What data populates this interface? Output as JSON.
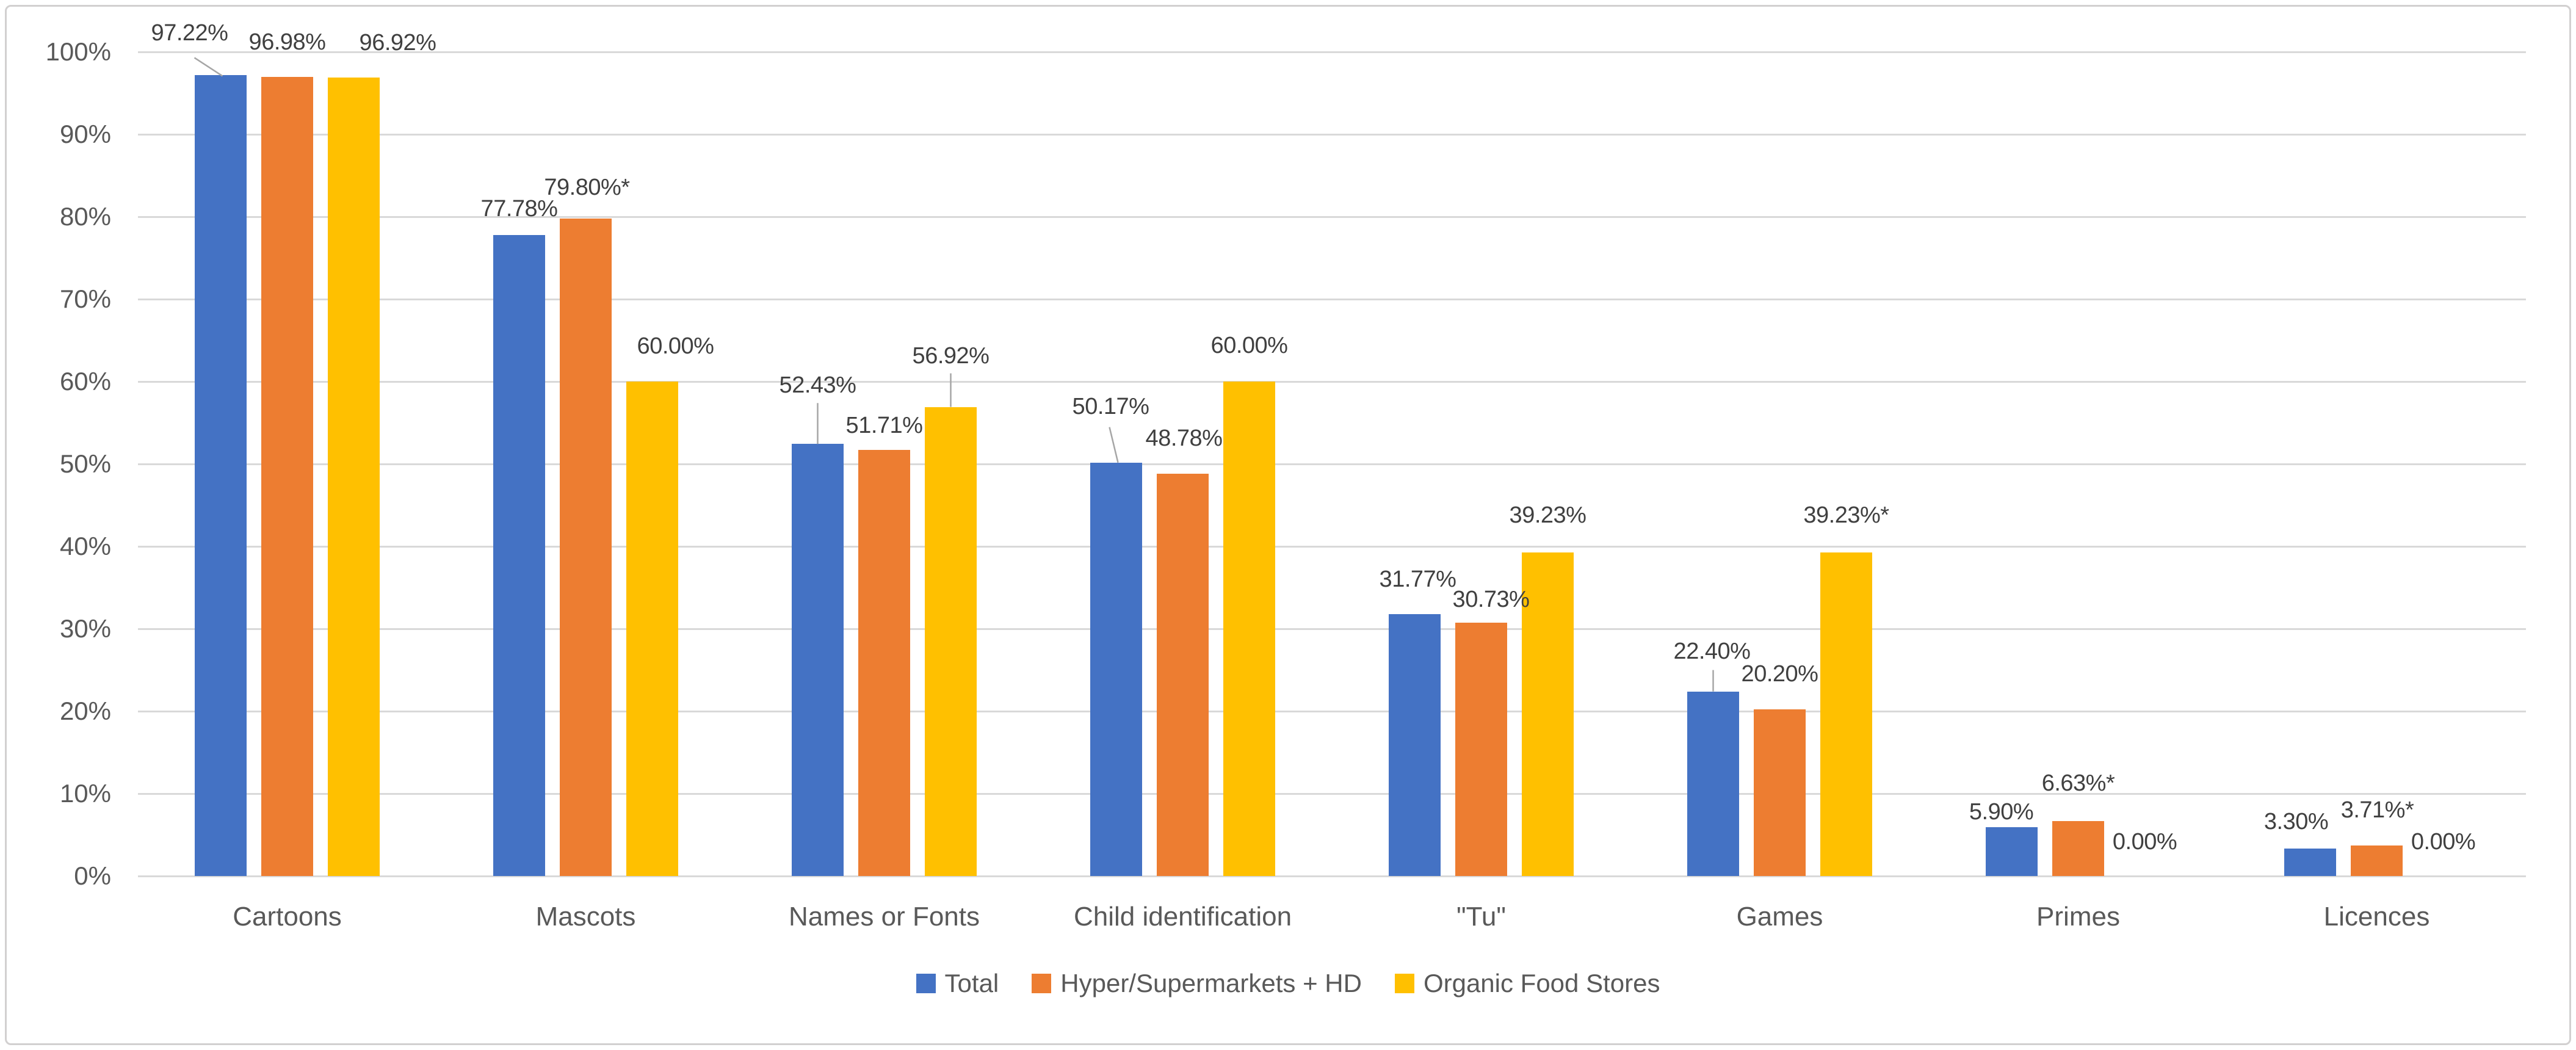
{
  "chart_data": {
    "type": "bar",
    "title": "",
    "xlabel": "",
    "ylabel": "",
    "categories": [
      "Cartoons",
      "Mascots",
      "Names or Fonts",
      "Child identification",
      "\"Tu\"",
      "Games",
      "Primes",
      "Licences"
    ],
    "series": [
      {
        "name": "Total",
        "color": "#4472C4",
        "values": [
          97.22,
          77.78,
          52.43,
          50.17,
          31.77,
          22.4,
          5.9,
          3.3
        ],
        "labels": [
          "97.22%",
          "77.78%",
          "52.43%",
          "50.17%",
          "31.77%",
          "22.40%",
          "5.90%",
          "3.30%"
        ]
      },
      {
        "name": "Hyper/Supermarkets + HD",
        "color": "#ED7D31",
        "values": [
          96.98,
          79.8,
          51.71,
          48.78,
          30.73,
          20.2,
          6.63,
          3.71
        ],
        "labels": [
          "96.98%",
          "79.80%*",
          "51.71%",
          "48.78%",
          "30.73%",
          "20.20%",
          "6.63%*",
          "3.71%*"
        ]
      },
      {
        "name": "Organic Food Stores",
        "color": "#FFC000",
        "values": [
          96.92,
          60.0,
          56.92,
          60.0,
          39.23,
          39.23,
          0.0,
          0.0
        ],
        "labels": [
          "96.92%",
          "60.00%",
          "56.92%",
          "60.00%",
          "39.23%",
          "39.23%*",
          "0.00%",
          "0.00%"
        ]
      }
    ],
    "y_ticks": [
      "0%",
      "10%",
      "20%",
      "30%",
      "40%",
      "50%",
      "60%",
      "70%",
      "80%",
      "90%",
      "100%"
    ],
    "ylim": [
      0,
      100
    ],
    "grid": true,
    "legend_position": "bottom",
    "grid_color": "#D9D9D9",
    "axis_text_color": "#595959",
    "data_label_color": "#404040",
    "leader_line_color": "#A6A6A6"
  }
}
